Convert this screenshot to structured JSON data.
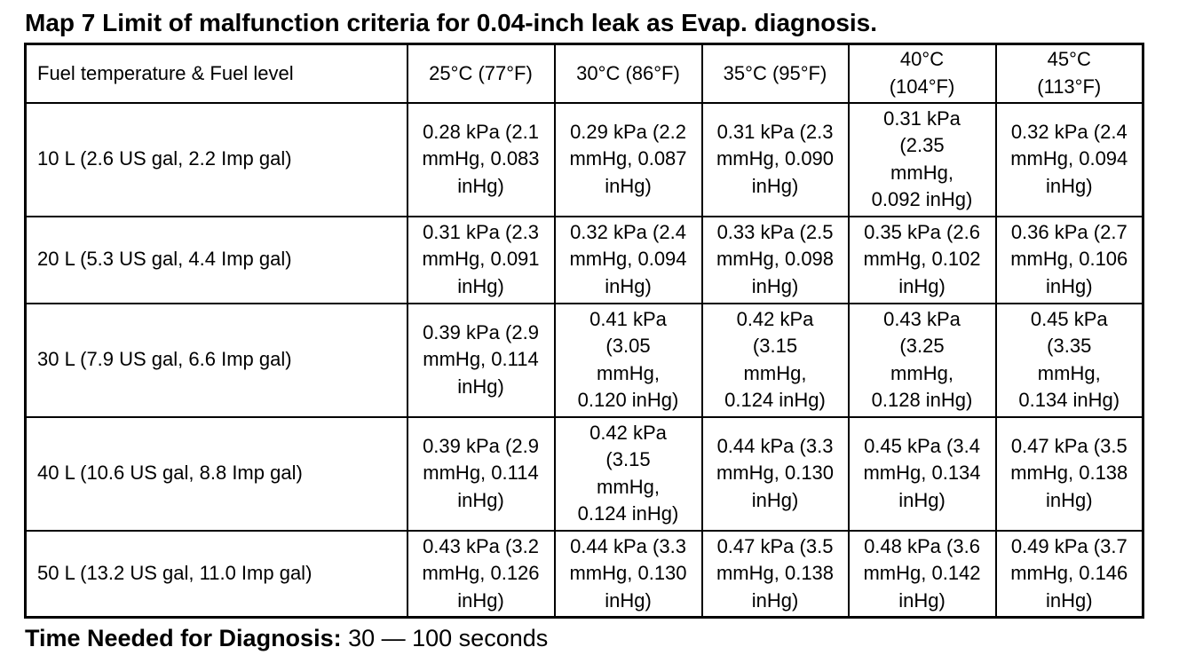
{
  "title": "Map 7 Limit of malfunction criteria for 0.04-inch leak as Evap. diagnosis.",
  "table": {
    "corner_label": "Fuel temperature & Fuel level",
    "columns": [
      "25°C (77°F)",
      "30°C (86°F)",
      "35°C (95°F)",
      "40°C (104°F)",
      "45°C (113°F)"
    ],
    "rows": [
      {
        "label": "10 L (2.6 US gal, 2.2 Imp gal)",
        "cells": [
          "0.28 kPa (2.1 mmHg, 0.083 inHg)",
          "0.29 kPa (2.2 mmHg, 0.087 inHg)",
          "0.31 kPa (2.3 mmHg, 0.090 inHg)",
          "0.31 kPa (2.35 mmHg, 0.092 inHg)",
          "0.32 kPa (2.4 mmHg, 0.094 inHg)"
        ]
      },
      {
        "label": "20 L (5.3 US gal, 4.4 Imp gal)",
        "cells": [
          "0.31 kPa (2.3 mmHg, 0.091 inHg)",
          "0.32 kPa (2.4 mmHg, 0.094 inHg)",
          "0.33 kPa (2.5 mmHg, 0.098 inHg)",
          "0.35 kPa (2.6 mmHg, 0.102 inHg)",
          "0.36 kPa (2.7 mmHg, 0.106 inHg)"
        ]
      },
      {
        "label": "30 L (7.9 US gal, 6.6 Imp gal)",
        "cells": [
          "0.39 kPa (2.9 mmHg, 0.114 inHg)",
          "0.41 kPa (3.05 mmHg, 0.120 inHg)",
          "0.42 kPa (3.15 mmHg, 0.124 inHg)",
          "0.43 kPa (3.25 mmHg, 0.128 inHg)",
          "0.45 kPa (3.35 mmHg, 0.134 inHg)"
        ]
      },
      {
        "label": "40 L (10.6 US gal, 8.8 Imp gal)",
        "cells": [
          "0.39 kPa (2.9 mmHg, 0.114 inHg)",
          "0.42 kPa (3.15 mmHg, 0.124 inHg)",
          "0.44 kPa (3.3 mmHg, 0.130 inHg)",
          "0.45 kPa (3.4 mmHg, 0.134 inHg)",
          "0.47 kPa (3.5 mmHg, 0.138 inHg)"
        ]
      },
      {
        "label": "50 L (13.2 US gal, 11.0 Imp gal)",
        "cells": [
          "0.43 kPa (3.2 mmHg, 0.126 inHg)",
          "0.44 kPa (3.3 mmHg, 0.130 inHg)",
          "0.47 kPa (3.5 mmHg, 0.138 inHg)",
          "0.48 kPa (3.6 mmHg, 0.142 inHg)",
          "0.49 kPa (3.7 mmHg, 0.146 inHg)"
        ]
      }
    ]
  },
  "footer": {
    "label": "Time Needed for Diagnosis:",
    "value": "30 — 100 seconds"
  }
}
